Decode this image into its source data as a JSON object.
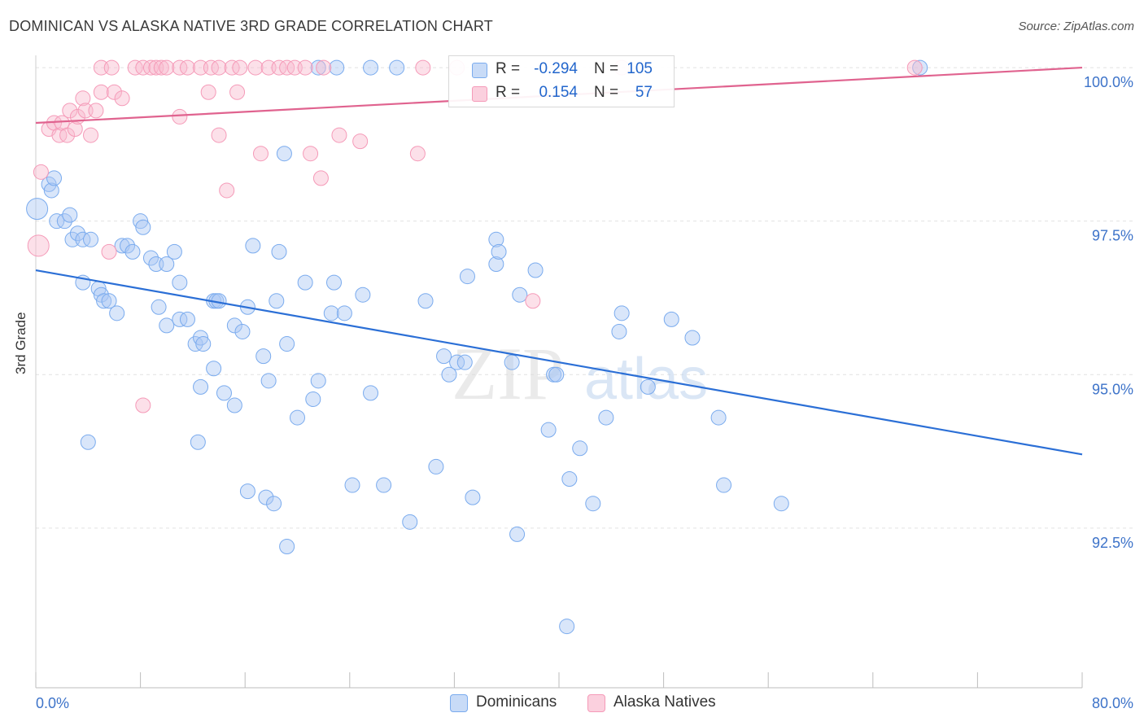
{
  "header": {
    "title": "DOMINICAN VS ALASKA NATIVE 3RD GRADE CORRELATION CHART",
    "source": "Source: ZipAtlas.com"
  },
  "legend": {
    "series": [
      {
        "r_label": "R =",
        "r_value": "-0.294",
        "n_label": "N =",
        "n_value": "105",
        "color": "#7aabee"
      },
      {
        "r_label": "R =",
        "r_value": "0.154",
        "n_label": "N =",
        "n_value": "57",
        "color": "#f59ab8"
      }
    ]
  },
  "bottom_legend": {
    "items": [
      {
        "label": "Dominicans",
        "color": "#7aabee"
      },
      {
        "label": "Alaska Natives",
        "color": "#f59ab8"
      }
    ]
  },
  "watermark": {
    "zip": "ZIP",
    "atlas": "atlas"
  },
  "chart_data": {
    "type": "scatter",
    "title": "DOMINICAN VS ALASKA NATIVE 3RD GRADE CORRELATION CHART",
    "xlabel": "",
    "ylabel": "3rd Grade",
    "xlim": [
      0,
      80
    ],
    "ylim": [
      89.9,
      100.2
    ],
    "x_tick_labels": [
      "0.0%",
      "80.0%"
    ],
    "y_ticks": [
      92.5,
      95.0,
      97.5,
      100.0
    ],
    "y_tick_labels": [
      "92.5%",
      "95.0%",
      "97.5%",
      "100.0%"
    ],
    "grid": true,
    "legend_position": "top-center",
    "series": [
      {
        "name": "Dominicans",
        "color": "#7aabee",
        "line_color": "#2b6fd6",
        "trend": {
          "x": [
            0,
            80
          ],
          "y": [
            96.7,
            93.7
          ]
        },
        "points": [
          [
            0.1,
            97.7
          ],
          [
            1.0,
            98.1
          ],
          [
            1.2,
            98.0
          ],
          [
            1.4,
            98.2
          ],
          [
            1.6,
            97.5
          ],
          [
            2.2,
            97.5
          ],
          [
            2.6,
            97.6
          ],
          [
            2.8,
            97.2
          ],
          [
            3.2,
            97.3
          ],
          [
            3.6,
            97.2
          ],
          [
            4.2,
            97.2
          ],
          [
            3.6,
            96.5
          ],
          [
            4.8,
            96.4
          ],
          [
            5.0,
            96.3
          ],
          [
            5.2,
            96.2
          ],
          [
            5.6,
            96.2
          ],
          [
            6.2,
            96.0
          ],
          [
            6.6,
            97.1
          ],
          [
            7.0,
            97.1
          ],
          [
            7.4,
            97.0
          ],
          [
            8.0,
            97.5
          ],
          [
            8.2,
            97.4
          ],
          [
            8.8,
            96.9
          ],
          [
            9.2,
            96.8
          ],
          [
            10.0,
            96.8
          ],
          [
            10.6,
            97.0
          ],
          [
            11.0,
            96.5
          ],
          [
            9.4,
            96.1
          ],
          [
            10.0,
            95.8
          ],
          [
            11.0,
            95.9
          ],
          [
            11.6,
            95.9
          ],
          [
            12.2,
            95.5
          ],
          [
            12.6,
            95.6
          ],
          [
            12.8,
            95.5
          ],
          [
            13.6,
            96.2
          ],
          [
            13.8,
            96.2
          ],
          [
            14.0,
            96.2
          ],
          [
            15.2,
            95.8
          ],
          [
            15.8,
            95.7
          ],
          [
            16.2,
            96.1
          ],
          [
            16.6,
            97.1
          ],
          [
            17.4,
            95.3
          ],
          [
            17.8,
            94.9
          ],
          [
            18.4,
            96.2
          ],
          [
            18.6,
            97.0
          ],
          [
            19.0,
            98.6
          ],
          [
            19.2,
            95.5
          ],
          [
            20.0,
            94.3
          ],
          [
            20.6,
            96.5
          ],
          [
            21.2,
            94.6
          ],
          [
            21.6,
            94.9
          ],
          [
            22.6,
            96.0
          ],
          [
            22.8,
            96.5
          ],
          [
            23.6,
            96.0
          ],
          [
            24.2,
            93.2
          ],
          [
            25.0,
            96.3
          ],
          [
            25.6,
            94.7
          ],
          [
            26.6,
            93.2
          ],
          [
            28.6,
            92.6
          ],
          [
            29.8,
            96.2
          ],
          [
            30.6,
            93.5
          ],
          [
            31.2,
            95.3
          ],
          [
            31.6,
            95.0
          ],
          [
            32.2,
            95.2
          ],
          [
            32.8,
            95.2
          ],
          [
            33.0,
            96.6
          ],
          [
            33.4,
            93.0
          ],
          [
            35.2,
            96.8
          ],
          [
            35.2,
            97.2
          ],
          [
            35.4,
            97.0
          ],
          [
            36.4,
            95.2
          ],
          [
            36.8,
            92.4
          ],
          [
            37.0,
            96.3
          ],
          [
            38.2,
            96.7
          ],
          [
            39.2,
            94.1
          ],
          [
            39.6,
            95.0
          ],
          [
            39.8,
            95.0
          ],
          [
            40.6,
            90.9
          ],
          [
            40.8,
            93.3
          ],
          [
            41.6,
            93.8
          ],
          [
            42.6,
            92.9
          ],
          [
            43.6,
            94.3
          ],
          [
            44.6,
            95.7
          ],
          [
            44.8,
            96.0
          ],
          [
            46.8,
            94.8
          ],
          [
            48.6,
            95.9
          ],
          [
            50.2,
            95.6
          ],
          [
            52.2,
            94.3
          ],
          [
            52.6,
            93.2
          ],
          [
            57.0,
            92.9
          ],
          [
            4.0,
            93.9
          ],
          [
            12.4,
            93.9
          ],
          [
            16.2,
            93.1
          ],
          [
            17.6,
            93.0
          ],
          [
            18.2,
            92.9
          ],
          [
            19.2,
            92.2
          ],
          [
            14.4,
            94.7
          ],
          [
            15.2,
            94.5
          ],
          [
            12.6,
            94.8
          ],
          [
            13.6,
            95.1
          ],
          [
            21.6,
            100.0
          ],
          [
            23.0,
            100.0
          ],
          [
            25.6,
            100.0
          ],
          [
            27.6,
            100.0
          ],
          [
            67.6,
            100.0
          ]
        ]
      },
      {
        "name": "Alaska Natives",
        "color": "#f59ab8",
        "line_color": "#e0638f",
        "trend": {
          "x": [
            0,
            80
          ],
          "y": [
            99.1,
            100.0
          ]
        },
        "points": [
          [
            0.2,
            97.1
          ],
          [
            0.4,
            98.3
          ],
          [
            1.0,
            99.0
          ],
          [
            1.4,
            99.1
          ],
          [
            1.8,
            98.9
          ],
          [
            2.0,
            99.1
          ],
          [
            2.4,
            98.9
          ],
          [
            2.6,
            99.3
          ],
          [
            3.0,
            99.0
          ],
          [
            3.2,
            99.2
          ],
          [
            3.6,
            99.5
          ],
          [
            3.8,
            99.3
          ],
          [
            4.2,
            98.9
          ],
          [
            4.6,
            99.3
          ],
          [
            5.0,
            99.6
          ],
          [
            5.6,
            97.0
          ],
          [
            6.0,
            99.6
          ],
          [
            6.6,
            99.5
          ],
          [
            8.2,
            94.5
          ],
          [
            11.0,
            99.2
          ],
          [
            13.2,
            99.6
          ],
          [
            14.0,
            98.9
          ],
          [
            14.6,
            98.0
          ],
          [
            15.4,
            99.6
          ],
          [
            17.2,
            98.6
          ],
          [
            21.0,
            98.6
          ],
          [
            21.8,
            98.2
          ],
          [
            23.2,
            98.9
          ],
          [
            24.8,
            98.8
          ],
          [
            29.2,
            98.6
          ],
          [
            38.0,
            96.2
          ],
          [
            5.0,
            100.0
          ],
          [
            5.8,
            100.0
          ],
          [
            7.6,
            100.0
          ],
          [
            8.2,
            100.0
          ],
          [
            8.8,
            100.0
          ],
          [
            9.2,
            100.0
          ],
          [
            9.6,
            100.0
          ],
          [
            10.0,
            100.0
          ],
          [
            11.0,
            100.0
          ],
          [
            11.6,
            100.0
          ],
          [
            12.6,
            100.0
          ],
          [
            13.4,
            100.0
          ],
          [
            14.0,
            100.0
          ],
          [
            15.0,
            100.0
          ],
          [
            15.6,
            100.0
          ],
          [
            16.8,
            100.0
          ],
          [
            17.8,
            100.0
          ],
          [
            18.6,
            100.0
          ],
          [
            19.2,
            100.0
          ],
          [
            19.8,
            100.0
          ],
          [
            20.6,
            100.0
          ],
          [
            22.0,
            100.0
          ],
          [
            29.6,
            100.0
          ],
          [
            32.2,
            100.0
          ],
          [
            67.2,
            100.0
          ],
          [
            44.8,
            100.0
          ]
        ]
      }
    ]
  }
}
